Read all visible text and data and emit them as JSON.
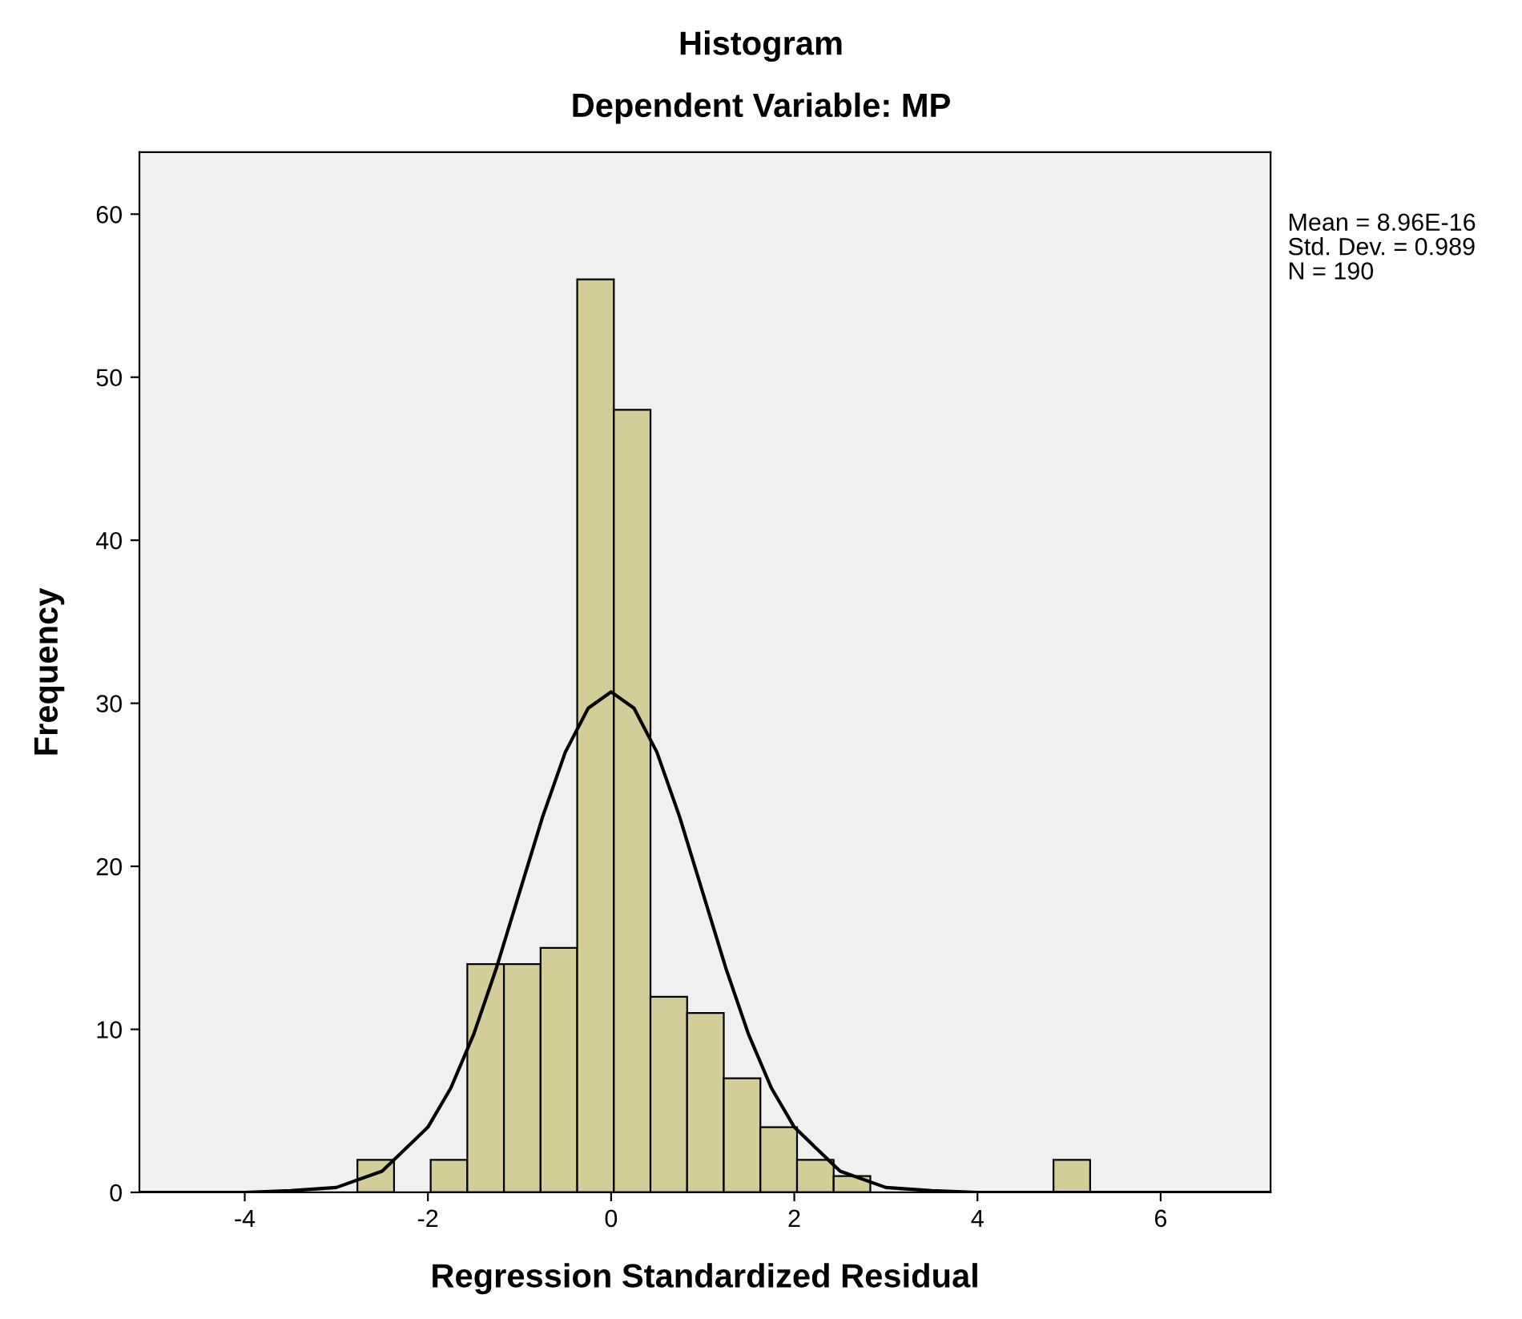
{
  "chart_data": {
    "type": "histogram",
    "title": "Histogram",
    "subtitle": "Dependent Variable: MP",
    "xlabel": "Regression Standardized Residual",
    "ylabel": "Frequency",
    "bins": [
      -2.77,
      -2.37,
      -1.97,
      -1.57,
      -1.17,
      -0.77,
      -0.37,
      0.03,
      0.43,
      0.83,
      1.23,
      1.63,
      2.03,
      2.43,
      2.83,
      3.23,
      3.63,
      4.03,
      4.43,
      4.83,
      5.23
    ],
    "values": [
      2,
      0,
      2,
      14,
      14,
      15,
      56,
      48,
      12,
      11,
      7,
      4,
      2,
      1,
      0,
      0,
      0,
      0,
      0,
      2
    ],
    "color": "#d3ce97",
    "series": [
      {
        "type": "line",
        "color": "#000000",
        "x": [
          -5.15,
          -4,
          -3.5,
          -3,
          -2.5,
          -2,
          -1.75,
          -1.5,
          -1.25,
          -1,
          -0.75,
          -0.5,
          -0.25,
          0,
          0.25,
          0.5,
          0.75,
          1,
          1.25,
          1.5,
          1.75,
          2,
          2.5,
          3,
          3.5,
          4,
          7.2
        ],
        "values": [
          0,
          0,
          0.1,
          0.3,
          1.3,
          4.0,
          6.4,
          9.7,
          13.8,
          18.4,
          23.0,
          27.0,
          29.7,
          30.7,
          29.7,
          27.0,
          23.0,
          18.4,
          13.8,
          9.7,
          6.4,
          4.0,
          1.3,
          0.3,
          0.1,
          0,
          0
        ]
      }
    ],
    "xlim": [
      -5.15,
      7.2
    ],
    "ylim": [
      0,
      63.8
    ],
    "xticks": [
      -4,
      -2,
      0,
      2,
      4,
      6
    ],
    "yticks": [
      0,
      10,
      20,
      30,
      40,
      50,
      60
    ],
    "grid": false,
    "legend": false,
    "annotations": [
      "Mean = 8.96E-16",
      "Std. Dev. = 0.989",
      "N = 190"
    ]
  }
}
